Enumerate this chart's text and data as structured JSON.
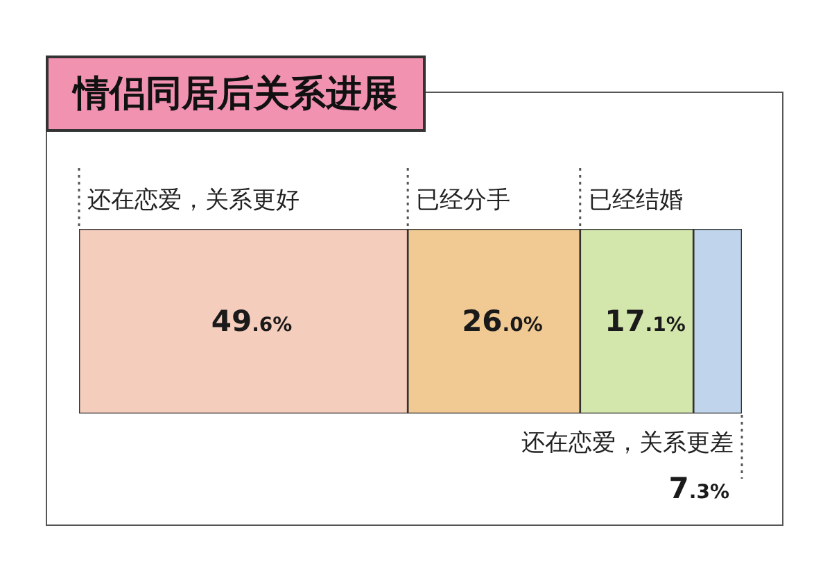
{
  "chart_data": {
    "type": "bar",
    "title": "情侣同居后关系进展",
    "orientation": "horizontal",
    "stacked": true,
    "categories": [
      null
    ],
    "xlim": [
      0,
      100
    ],
    "tick_labels": false,
    "series": [
      {
        "name": "还在恋爱，关系更好",
        "color": "#f4cdbd",
        "values": [
          49.6
        ],
        "value_labels": [
          "49.6%"
        ]
      },
      {
        "name": "已经分手",
        "color": "#f0c993",
        "values": [
          26.0
        ],
        "value_labels": [
          "26.0%"
        ]
      },
      {
        "name": "已经结婚",
        "color": "#d3e6ab",
        "values": [
          17.1
        ],
        "value_labels": [
          "17.1%"
        ]
      },
      {
        "name": "还在恋爱，关系更差",
        "color": "#c0d5ec",
        "values": [
          7.3
        ],
        "value_labels": [
          "7.3%"
        ]
      }
    ]
  }
}
